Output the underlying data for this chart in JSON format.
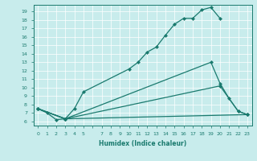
{
  "xlabel": "Humidex (Indice chaleur)",
  "background_color": "#c8ecec",
  "line_color": "#1a7a6e",
  "grid_color": "#b0d8d8",
  "xlim": [
    -0.5,
    23.5
  ],
  "ylim": [
    5.5,
    19.8
  ],
  "xtick_positions": [
    0,
    1,
    2,
    3,
    4,
    5,
    7,
    8,
    9,
    10,
    11,
    12,
    13,
    14,
    15,
    16,
    17,
    18,
    19,
    20,
    21,
    22,
    23
  ],
  "xtick_labels": [
    "0",
    "1",
    "2",
    "3",
    "4",
    "5",
    "7",
    "8",
    "9",
    "10",
    "11",
    "12",
    "13",
    "14",
    "15",
    "16",
    "17",
    "18",
    "19",
    "20",
    "21",
    "22",
    "23"
  ],
  "ytick_positions": [
    6,
    7,
    8,
    9,
    10,
    11,
    12,
    13,
    14,
    15,
    16,
    17,
    18,
    19
  ],
  "line1_x": [
    0,
    1,
    2,
    3,
    4,
    5,
    10,
    11,
    12,
    13,
    14,
    15,
    16,
    17,
    18,
    19,
    20
  ],
  "line1_y": [
    7.5,
    7.0,
    6.2,
    6.3,
    7.5,
    9.5,
    12.2,
    13.0,
    14.2,
    14.8,
    16.2,
    17.5,
    18.2,
    18.2,
    19.2,
    19.5,
    18.2
  ],
  "line2_x": [
    0,
    3,
    19,
    20,
    21,
    22,
    23
  ],
  "line2_y": [
    7.5,
    6.3,
    13.0,
    10.5,
    8.7,
    7.2,
    6.8
  ],
  "line3_x": [
    0,
    3,
    20,
    22,
    23
  ],
  "line3_y": [
    7.5,
    6.3,
    10.2,
    7.2,
    6.8
  ],
  "line4_x": [
    0,
    3,
    23
  ],
  "line4_y": [
    7.5,
    6.3,
    6.8
  ]
}
